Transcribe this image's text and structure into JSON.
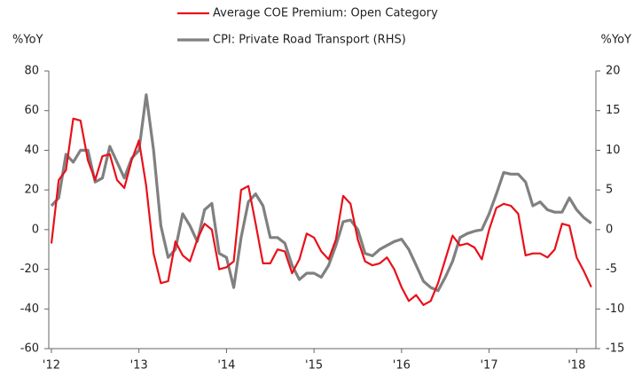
{
  "chart_data": {
    "type": "line",
    "y_label": "%YoY",
    "y2_label": "%YoY",
    "x": [
      2012,
      2012.083,
      2012.167,
      2012.25,
      2012.333,
      2012.417,
      2012.5,
      2012.583,
      2012.667,
      2012.75,
      2012.833,
      2012.917,
      2013,
      2013.083,
      2013.167,
      2013.25,
      2013.333,
      2013.417,
      2013.5,
      2013.583,
      2013.667,
      2013.75,
      2013.833,
      2013.917,
      2014,
      2014.083,
      2014.167,
      2014.25,
      2014.333,
      2014.417,
      2014.5,
      2014.583,
      2014.667,
      2014.75,
      2014.833,
      2014.917,
      2015,
      2015.083,
      2015.167,
      2015.25,
      2015.333,
      2015.417,
      2015.5,
      2015.583,
      2015.667,
      2015.75,
      2015.833,
      2015.917,
      2016,
      2016.083,
      2016.167,
      2016.25,
      2016.333,
      2016.417,
      2016.5,
      2016.583,
      2016.667,
      2016.75,
      2016.833,
      2016.917,
      2017,
      2017.083,
      2017.167,
      2017.25,
      2017.333,
      2017.417,
      2017.5,
      2017.583,
      2017.667,
      2017.75,
      2017.833,
      2017.917,
      2018,
      2018.083,
      2018.167
    ],
    "series": [
      {
        "name": "Average COE Premium: Open Category",
        "color": "#e8101a",
        "axis": "y",
        "values": [
          -7,
          25,
          30,
          56,
          55,
          35,
          25,
          37,
          38,
          25,
          21,
          35,
          45,
          22,
          -12,
          -27,
          -26,
          -6,
          -13,
          -16,
          -5,
          3,
          0,
          -20,
          -19,
          -16,
          20,
          22,
          3,
          -17,
          -17,
          -10,
          -11,
          -22,
          -15,
          -2,
          -4,
          -11,
          -15,
          -5,
          17,
          13,
          -5,
          -16,
          -18,
          -17,
          -14,
          -20,
          -29,
          -36,
          -33,
          -38,
          -36,
          -27,
          -15,
          -3,
          -8,
          -7,
          -9,
          -15,
          0,
          11,
          13,
          12,
          8,
          -13,
          -12,
          -12,
          -14,
          -10,
          3,
          2,
          -14,
          -21,
          -29
        ]
      },
      {
        "name": "CPI: Private Road Transport (RHS)",
        "color": "#808080",
        "axis": "y2",
        "values": [
          3,
          4,
          9.5,
          8.5,
          10,
          10,
          6,
          6.5,
          10.5,
          8.5,
          6.5,
          9,
          10,
          17,
          10,
          0.5,
          -3.5,
          -2.5,
          2,
          0.5,
          -1.5,
          2.5,
          3.3,
          -3,
          -3.5,
          -7.3,
          -1,
          3.5,
          4.5,
          3,
          -1,
          -1,
          -1.7,
          -4.5,
          -6.3,
          -5.5,
          -5.5,
          -6,
          -4.5,
          -2,
          1,
          1.2,
          0,
          -3,
          -3.3,
          -2.5,
          -2,
          -1.5,
          -1.2,
          -2.5,
          -4.5,
          -6.5,
          -7.3,
          -7.7,
          -6,
          -4,
          -1,
          -0.5,
          -0.2,
          0,
          2,
          4.5,
          7.2,
          7,
          7,
          6,
          3,
          3.5,
          2.5,
          2.2,
          2.2,
          4,
          2.5,
          1.5,
          0.8
        ]
      }
    ],
    "xlim": [
      2011.97,
      2018.22
    ],
    "xticks": [
      {
        "value": 2012,
        "label": "'12"
      },
      {
        "value": 2013,
        "label": "'13"
      },
      {
        "value": 2014,
        "label": "'14"
      },
      {
        "value": 2015,
        "label": "'15"
      },
      {
        "value": 2016,
        "label": "'16"
      },
      {
        "value": 2017,
        "label": "'17"
      },
      {
        "value": 2018,
        "label": "'18"
      }
    ],
    "ylim": [
      -60,
      80
    ],
    "yticks": [
      -60,
      -40,
      -20,
      0,
      20,
      40,
      60,
      80
    ],
    "y2lim": [
      -15,
      20
    ],
    "y2ticks": [
      -15,
      -10,
      -5,
      0,
      5,
      10,
      15,
      20
    ],
    "grid": false,
    "legend": "top"
  }
}
